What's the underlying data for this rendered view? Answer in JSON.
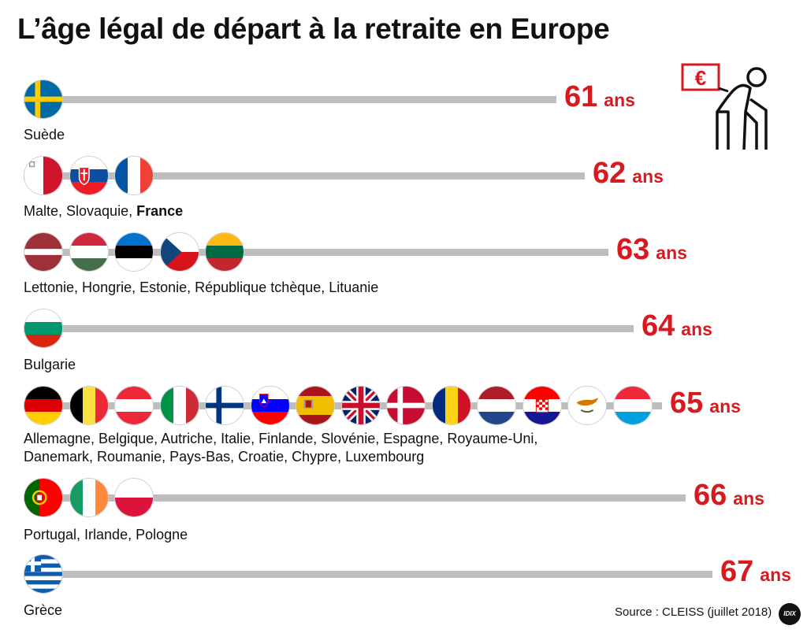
{
  "title": "L’âge légal de départ à la retraite en Europe",
  "colors": {
    "accent": "#d71920",
    "bar": "#bdbdbd",
    "text": "#111111"
  },
  "unit": "ans",
  "chart_data": {
    "type": "bar",
    "orientation": "horizontal",
    "title": "L’âge légal de départ à la retraite en Europe",
    "xlabel": "",
    "ylabel": "",
    "xlim": [
      0,
      67
    ],
    "categories": [
      "Suède",
      "Malte, Slovaquie, France",
      "Lettonie, Hongrie, Estonie, République tchèque, Lituanie",
      "Bulgarie",
      "Allemagne, Belgique, Autriche, Italie, Finlande, Slovénie, Espagne, Royaume-Uni, Danemark, Roumanie, Pays-Bas, Croatie, Chypre, Luxembourg",
      "Portugal, Irlande, Pologne",
      "Grèce"
    ],
    "values": [
      61,
      62,
      63,
      64,
      65,
      66,
      67
    ]
  },
  "groups": [
    {
      "age": "61",
      "line1": "Suède",
      "flags": [
        "sweden-flag-icon"
      ]
    },
    {
      "age": "62",
      "line1": "Malte, Slovaquie, ",
      "bold": "France",
      "flags": [
        "malta-flag-icon",
        "slovakia-flag-icon",
        "france-flag-icon"
      ]
    },
    {
      "age": "63",
      "line1": "Lettonie, Hongrie, Estonie, République tchèque, Lituanie",
      "flags": [
        "latvia-flag-icon",
        "hungary-flag-icon",
        "estonia-flag-icon",
        "czech-republic-flag-icon",
        "lithuania-flag-icon"
      ]
    },
    {
      "age": "64",
      "line1": "Bulgarie",
      "flags": [
        "bulgaria-flag-icon"
      ]
    },
    {
      "age": "65",
      "line1": "Allemagne, Belgique, Autriche, Italie, Finlande, Slovénie, Espagne, Royaume-Uni,",
      "line2": "Danemark, Roumanie, Pays-Bas, Croatie, Chypre, Luxembourg",
      "flags": [
        "germany-flag-icon",
        "belgium-flag-icon",
        "austria-flag-icon",
        "italy-flag-icon",
        "finland-flag-icon",
        "slovenia-flag-icon",
        "spain-flag-icon",
        "united-kingdom-flag-icon",
        "denmark-flag-icon",
        "romania-flag-icon",
        "netherlands-flag-icon",
        "croatia-flag-icon",
        "cyprus-flag-icon",
        "luxembourg-flag-icon"
      ]
    },
    {
      "age": "66",
      "line1": "Portugal, Irlande, Pologne",
      "flags": [
        "portugal-flag-icon",
        "ireland-flag-icon",
        "poland-flag-icon"
      ]
    },
    {
      "age": "67",
      "line1": "Grèce",
      "flags": [
        "greece-flag-icon"
      ]
    }
  ],
  "illustration": {
    "icon": "retiree-with-cane-icon",
    "badge_symbol": "€"
  },
  "source": "Source : CLEISS (juillet 2018)",
  "logo": "IDIX"
}
